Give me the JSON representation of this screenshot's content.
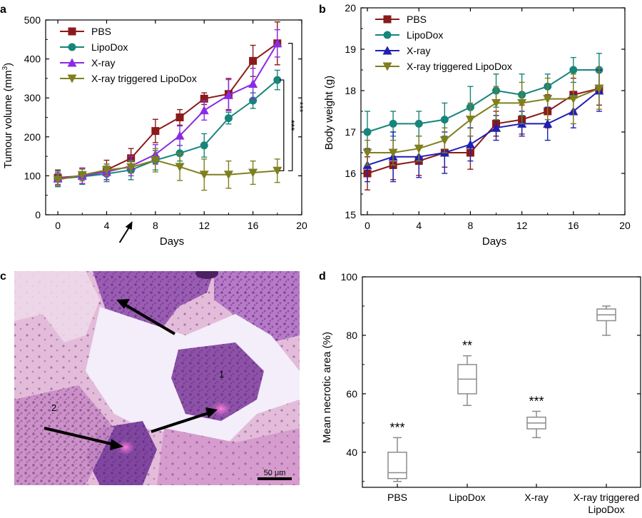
{
  "colors": {
    "pbs": "#8b1a1a",
    "lipodox": "#17857a",
    "xray": "#8a2be2",
    "xray_lipodox": "#7f7f1f",
    "xray_b": "#1f1fb4",
    "box": "#8c8c8c",
    "axis": "#000000",
    "arrow": "#000000",
    "tissue_bg": "#e9c7e0",
    "tissue_purple": "#8a4fa3",
    "tissue_pink": "#dc9ccc",
    "tissue_clear": "#f4f1fa",
    "pink_spot": "#ff6bd2"
  },
  "panels": {
    "a": {
      "label": "a"
    },
    "b": {
      "label": "b"
    },
    "c": {
      "label": "c"
    },
    "d": {
      "label": "d"
    }
  },
  "chart_data": [
    {
      "panel": "a",
      "type": "line",
      "xlabel": "Days",
      "ylabel": "Tumour volume (mm",
      "ylabel_sup": "3",
      "ylabel_close": ")",
      "xlim": [
        -1,
        20
      ],
      "ylim": [
        0,
        500
      ],
      "xticks": [
        "0",
        "4",
        "8",
        "12",
        "16",
        "20"
      ],
      "xtick_values": [
        0,
        4,
        8,
        12,
        16,
        20
      ],
      "yticks": [
        "0",
        "100",
        "200",
        "300",
        "400",
        "500"
      ],
      "ytick_values": [
        0,
        100,
        200,
        300,
        400,
        500
      ],
      "legend": "top-left",
      "arrow_day": 6,
      "significance": "***",
      "bracket_series": [
        [
          0,
          3
        ],
        [
          1,
          3
        ]
      ],
      "series": [
        {
          "name": "PBS",
          "marker": "square",
          "color_key": "pbs",
          "x": [
            0,
            2,
            4,
            6,
            8,
            10,
            12,
            14,
            16,
            18
          ],
          "y": [
            95,
            100,
            115,
            145,
            215,
            250,
            298,
            310,
            395,
            440
          ],
          "err": [
            20,
            20,
            25,
            25,
            30,
            20,
            15,
            40,
            40,
            55
          ]
        },
        {
          "name": "LipoDox",
          "marker": "circle",
          "color_key": "lipodox",
          "x": [
            0,
            2,
            4,
            6,
            8,
            10,
            12,
            14,
            16,
            18
          ],
          "y": [
            92,
            98,
            105,
            115,
            140,
            158,
            178,
            248,
            293,
            346
          ],
          "err": [
            20,
            20,
            20,
            25,
            25,
            20,
            30,
            15,
            20,
            25
          ]
        },
        {
          "name": "X-ray",
          "marker": "triangle-up",
          "color_key": "xray",
          "x": [
            0,
            2,
            4,
            6,
            8,
            10,
            12,
            14,
            16,
            18
          ],
          "y": [
            93,
            100,
            110,
            125,
            155,
            203,
            268,
            307,
            336,
            440
          ],
          "err": [
            15,
            20,
            20,
            25,
            25,
            25,
            25,
            40,
            40,
            35
          ]
        },
        {
          "name": "X-ray triggered LipoDox",
          "marker": "triangle-down",
          "color_key": "xray_lipodox",
          "x": [
            0,
            2,
            4,
            6,
            8,
            10,
            12,
            14,
            16,
            18
          ],
          "y": [
            90,
            102,
            115,
            122,
            140,
            123,
            103,
            103,
            108,
            113
          ],
          "err": [
            15,
            15,
            15,
            15,
            30,
            35,
            40,
            35,
            30,
            30
          ]
        }
      ]
    },
    {
      "panel": "b",
      "type": "line",
      "xlabel": "Days",
      "ylabel": "Body weight (g)",
      "xlim": [
        -0.5,
        20
      ],
      "ylim": [
        15,
        20
      ],
      "xticks": [
        "0",
        "4",
        "8",
        "12",
        "16",
        "20"
      ],
      "xtick_values": [
        0,
        4,
        8,
        12,
        16,
        20
      ],
      "yticks": [
        "15",
        "16",
        "17",
        "18",
        "19",
        "20"
      ],
      "ytick_values": [
        15,
        16,
        17,
        18,
        19,
        20
      ],
      "legend": "top-left",
      "series": [
        {
          "name": "PBS",
          "marker": "square",
          "color_key": "pbs",
          "x": [
            0,
            2,
            4,
            6,
            8,
            10,
            12,
            14,
            16,
            18
          ],
          "y": [
            16.0,
            16.2,
            16.3,
            16.5,
            16.5,
            17.2,
            17.3,
            17.5,
            17.9,
            18.05
          ],
          "err": [
            0.4,
            0.35,
            0.35,
            0.35,
            0.4,
            0.3,
            0.35,
            0.4,
            0.4,
            0.4
          ]
        },
        {
          "name": "LipoDox",
          "marker": "circle",
          "color_key": "lipodox",
          "x": [
            0,
            2,
            4,
            6,
            8,
            10,
            12,
            14,
            16,
            18
          ],
          "y": [
            17.0,
            17.2,
            17.2,
            17.3,
            17.6,
            18.0,
            17.9,
            18.1,
            18.5,
            18.5
          ],
          "err": [
            0.5,
            0.3,
            0.3,
            0.4,
            0.5,
            0.4,
            0.5,
            0.3,
            0.3,
            0.4
          ]
        },
        {
          "name": "X-ray",
          "marker": "triangle-up",
          "color_key": "xray_b",
          "x": [
            0,
            2,
            4,
            6,
            8,
            10,
            12,
            14,
            16,
            18
          ],
          "y": [
            16.2,
            16.4,
            16.4,
            16.5,
            16.7,
            17.1,
            17.2,
            17.2,
            17.5,
            18.0
          ],
          "err": [
            0.4,
            0.6,
            0.5,
            0.5,
            0.4,
            0.3,
            0.3,
            0.4,
            0.4,
            0.5
          ]
        },
        {
          "name": "X-ray triggered LipoDox",
          "marker": "triangle-down",
          "color_key": "xray_lipodox",
          "x": [
            0,
            2,
            4,
            6,
            8,
            10,
            12,
            14,
            16,
            18
          ],
          "y": [
            16.5,
            16.5,
            16.6,
            16.8,
            17.3,
            17.7,
            17.7,
            17.8,
            17.8,
            18.05
          ],
          "err": [
            0.3,
            0.3,
            0.3,
            0.3,
            0.4,
            0.4,
            0.5,
            0.5,
            0.6,
            0.5
          ]
        }
      ]
    },
    {
      "panel": "d",
      "type": "box",
      "ylabel": "Mean necrotic area (%)",
      "ylim": [
        28,
        100
      ],
      "yticks": [
        "40",
        "60",
        "80",
        "100"
      ],
      "ytick_values": [
        40,
        60,
        80,
        100
      ],
      "categories": [
        "PBS",
        "LipoDox",
        "X-ray",
        "X-ray triggered LipoDox"
      ],
      "category_lines": [
        [
          "PBS"
        ],
        [
          "LipoDox"
        ],
        [
          "X-ray"
        ],
        [
          "X-ray triggered",
          "LipoDox"
        ]
      ],
      "boxes": [
        {
          "min": 30,
          "q1": 31,
          "median": 33,
          "q3": 40,
          "max": 45,
          "sig": "***"
        },
        {
          "min": 56,
          "q1": 60,
          "median": 65,
          "q3": 70,
          "max": 73,
          "sig": "**"
        },
        {
          "min": 45,
          "q1": 48,
          "median": 50,
          "q3": 52,
          "max": 54,
          "sig": "***"
        },
        {
          "min": 80,
          "q1": 85,
          "median": 87,
          "q3": 89,
          "max": 90,
          "sig": ""
        }
      ]
    }
  ],
  "histology": {
    "scale_bar": "50 μm",
    "region_labels": [
      "1",
      "2"
    ]
  }
}
